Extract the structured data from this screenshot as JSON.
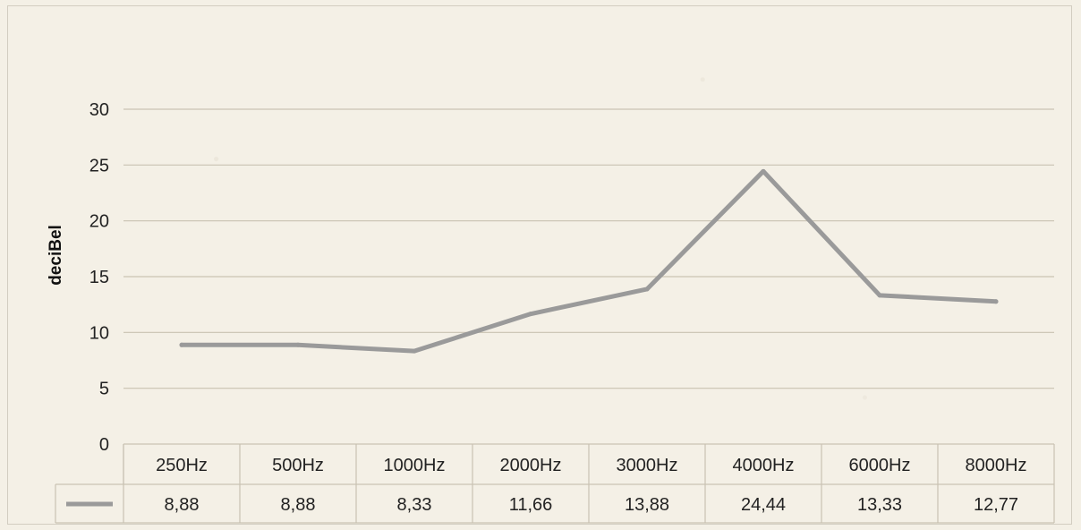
{
  "chart_data": {
    "type": "line",
    "title": "",
    "xlabel": "",
    "ylabel": "deciBel",
    "ylim": [
      0,
      30
    ],
    "y_ticks": [
      0,
      5,
      10,
      15,
      20,
      25,
      30
    ],
    "y_tick_labels": [
      "0",
      "5",
      "10",
      "15",
      "20",
      "25",
      "30"
    ],
    "categories": [
      "250Hz",
      "500Hz",
      "1000Hz",
      "2000Hz",
      "3000Hz",
      "4000Hz",
      "6000Hz",
      "8000Hz"
    ],
    "series": [
      {
        "values": [
          8.88,
          8.88,
          8.33,
          11.66,
          13.88,
          24.44,
          13.33,
          12.77
        ],
        "value_labels": [
          "8,88",
          "8,88",
          "8,33",
          "11,66",
          "13,88",
          "24,44",
          "13,33",
          "12,77"
        ],
        "color": "#9a9a9a"
      }
    ],
    "grid": true,
    "legend": "data-table"
  }
}
